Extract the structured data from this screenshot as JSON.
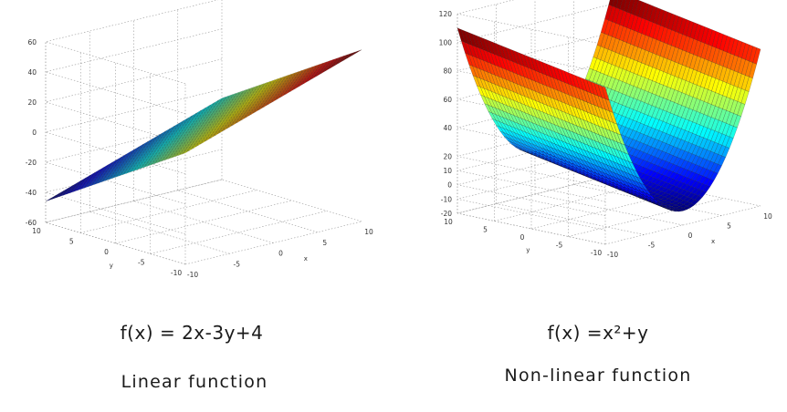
{
  "chart_data": [
    {
      "type": "surface",
      "formula": "f(x) = 2x-3y+4",
      "name": "Linear function",
      "x_ticks": [
        "-10",
        "-5",
        "0",
        "5",
        "10"
      ],
      "y_ticks": [
        "-10",
        "-5",
        "0",
        "5",
        "10"
      ],
      "z_ticks": [
        "-60",
        "-40",
        "-20",
        "0",
        "20",
        "40",
        "60"
      ],
      "xlabel": "x",
      "ylabel": "y",
      "x_range": [
        -10,
        10
      ],
      "y_range": [
        -10,
        10
      ],
      "z_range": [
        -60,
        60
      ],
      "grid": true,
      "colormap": "jet"
    },
    {
      "type": "surface",
      "formula": "f(x) =x²+y",
      "name": "Non-linear function",
      "x_ticks": [
        "-10",
        "-5",
        "0",
        "5",
        "10"
      ],
      "y_ticks": [
        "-10",
        "-5",
        "0",
        "5",
        "10"
      ],
      "z_ticks": [
        "-20",
        "-10",
        "0",
        "10",
        "20",
        "40",
        "60",
        "80",
        "100",
        "120"
      ],
      "xlabel": "x",
      "ylabel": "y",
      "x_range": [
        -10,
        10
      ],
      "y_range": [
        -10,
        10
      ],
      "z_range": [
        -20,
        120
      ],
      "grid": true,
      "colormap": "jet"
    }
  ]
}
